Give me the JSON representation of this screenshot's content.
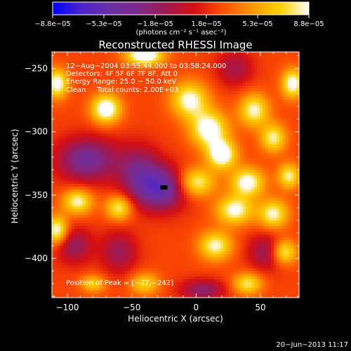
{
  "chart_data": {
    "type": "heatmap",
    "title": "Reconstructed RHESSI Image",
    "xlabel": "Heliocentric X (arcsec)",
    "ylabel": "Heliocentric Y (arcsec)",
    "xlim": [
      -112,
      80
    ],
    "ylim": [
      -431,
      -237
    ],
    "xticks": [
      -100,
      -50,
      0,
      50
    ],
    "xtick_labels": [
      "−100",
      "−50",
      "0",
      "50"
    ],
    "yticks": [
      -250,
      -300,
      -350,
      -400
    ],
    "ytick_labels": [
      "−250",
      "−300",
      "−350",
      "−400"
    ],
    "colorbar": {
      "min": -8.8e-05,
      "max": 8.8e-05,
      "tick_labels": [
        "−8.8e−05",
        "−5.3e−05",
        "−1.8e−05",
        "1.8e−05",
        "5.3e−05",
        "8.8e−05"
      ],
      "unit_text": "(photons cm⁻² s⁻¹ asec⁻²)",
      "colormap": [
        "#0000ff",
        "#4b23c8",
        "#6a2ea8",
        "#7d2a8a",
        "#a0184e",
        "#d60f12",
        "#ff5000",
        "#ff9800",
        "#ffd000",
        "#ffffff"
      ]
    },
    "annotations": {
      "time_range": "12−Aug−2004 03:55:44.000 to 03:58:24.000",
      "detectors": "Detectors: 4F 5F 6F 7F 8F, Att 0",
      "energy": "Energy Range: 25.0 − 50.0 keV",
      "clean": "Clean     Total counts: 2.00E+03",
      "peak": "Position of Peak = [−27,−242]"
    },
    "peak": [
      -27,
      -242
    ],
    "blobs": [
      {
        "x": -28,
        "y": -345,
        "sx": 14,
        "sy": 12,
        "a": -1.0
      },
      {
        "x": -85,
        "y": -322,
        "sx": 16,
        "sy": 12,
        "a": -0.85
      },
      {
        "x": -45,
        "y": -330,
        "sx": 12,
        "sy": 14,
        "a": -0.6
      },
      {
        "x": -95,
        "y": -390,
        "sx": 10,
        "sy": 10,
        "a": -0.55
      },
      {
        "x": -60,
        "y": -395,
        "sx": 10,
        "sy": 12,
        "a": -0.5
      },
      {
        "x": 55,
        "y": -395,
        "sx": 10,
        "sy": 10,
        "a": -0.55
      },
      {
        "x": 30,
        "y": -250,
        "sx": 10,
        "sy": 10,
        "a": -0.45
      },
      {
        "x": 5,
        "y": -425,
        "sx": 12,
        "sy": 6,
        "a": -0.6
      },
      {
        "x": -40,
        "y": -240,
        "sx": 10,
        "sy": 5,
        "a": 1.1
      },
      {
        "x": -70,
        "y": -282,
        "sx": 8,
        "sy": 8,
        "a": 1.0
      },
      {
        "x": -108,
        "y": -262,
        "sx": 6,
        "sy": 8,
        "a": 0.9
      },
      {
        "x": -108,
        "y": -378,
        "sx": 6,
        "sy": 8,
        "a": 0.9
      },
      {
        "x": -92,
        "y": -355,
        "sx": 8,
        "sy": 7,
        "a": 0.8
      },
      {
        "x": -60,
        "y": -360,
        "sx": 7,
        "sy": 7,
        "a": 0.75
      },
      {
        "x": -5,
        "y": -275,
        "sx": 10,
        "sy": 10,
        "a": 0.85
      },
      {
        "x": 10,
        "y": -298,
        "sx": 10,
        "sy": 10,
        "a": 0.95
      },
      {
        "x": 20,
        "y": -318,
        "sx": 8,
        "sy": 8,
        "a": 1.0
      },
      {
        "x": 0,
        "y": -340,
        "sx": 10,
        "sy": 8,
        "a": 0.8
      },
      {
        "x": 40,
        "y": -340,
        "sx": 9,
        "sy": 8,
        "a": 0.9
      },
      {
        "x": 30,
        "y": -362,
        "sx": 10,
        "sy": 8,
        "a": 0.85
      },
      {
        "x": 15,
        "y": -390,
        "sx": 9,
        "sy": 8,
        "a": 0.8
      },
      {
        "x": 60,
        "y": -365,
        "sx": 8,
        "sy": 8,
        "a": 0.8
      },
      {
        "x": 68,
        "y": -395,
        "sx": 7,
        "sy": 7,
        "a": 0.85
      },
      {
        "x": 45,
        "y": -283,
        "sx": 8,
        "sy": 9,
        "a": 0.8
      },
      {
        "x": 75,
        "y": -262,
        "sx": 6,
        "sy": 8,
        "a": 0.9
      },
      {
        "x": 60,
        "y": -305,
        "sx": 7,
        "sy": 8,
        "a": 0.75
      },
      {
        "x": -40,
        "y": -420,
        "sx": 8,
        "sy": 6,
        "a": 0.6
      },
      {
        "x": 40,
        "y": -420,
        "sx": 8,
        "sy": 6,
        "a": 0.7
      },
      {
        "x": -80,
        "y": -420,
        "sx": 7,
        "sy": 5,
        "a": 0.55
      },
      {
        "x": 72,
        "y": -335,
        "sx": 6,
        "sy": 7,
        "a": 0.75
      }
    ],
    "peak_marker": {
      "x": -25,
      "y": -344
    }
  },
  "footer": {
    "date": "20−Jun−2013 11:17"
  }
}
